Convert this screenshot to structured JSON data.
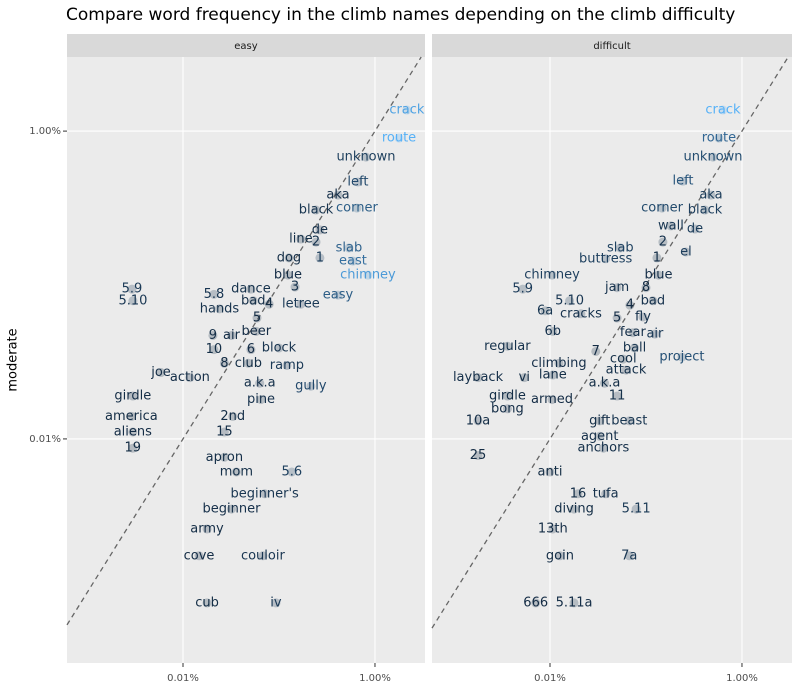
{
  "title": "Compare word frequency in the climb names depending on the climb difficulty",
  "y_label": "moderate",
  "chart_data": [
    {
      "type": "scatter",
      "facet": "easy",
      "log_x": true,
      "log_y": true,
      "grid": true,
      "color_scale": {
        "low": "#132B43",
        "high": "#56B1F7"
      },
      "xlim": [
        6.19e-06,
        0.0332
      ],
      "ylim": [
        3.5e-06,
        0.0303
      ],
      "xticks": [
        {
          "value": 0.0001,
          "label": "0.01%"
        },
        {
          "value": 0.01,
          "label": "1.00%"
        }
      ],
      "yticks": [
        {
          "value": 0.0001,
          "label": "0.01%"
        },
        {
          "value": 0.01,
          "label": "1.00%"
        }
      ],
      "labels": [
        "crack",
        "route",
        "unknown",
        "left",
        "aka",
        "black",
        "corner",
        "de",
        "line",
        "2",
        "slab",
        "1",
        "dog",
        "east",
        "blue",
        "chimney",
        "3",
        "5.9",
        "dance",
        "easy",
        "5.10",
        "5.8",
        "bad",
        "4",
        "letree",
        "hands",
        "5",
        "beer",
        "9",
        "air",
        "10",
        "6",
        "block",
        "8",
        "club",
        "ramp",
        "joe",
        "action",
        "a.k.a",
        "gully",
        "girdle",
        "pine",
        "america",
        "2nd",
        "aliens",
        "15",
        "19",
        "apron",
        "mom",
        "5.6",
        "beginner's",
        "beginner",
        "army",
        "cove",
        "couloir",
        "cub",
        "iv"
      ],
      "x": [
        0.0215,
        0.0178,
        0.00806,
        0.00665,
        0.00412,
        0.00243,
        0.00649,
        0.00267,
        0.00169,
        0.00243,
        0.00536,
        0.00267,
        0.00127,
        0.0059,
        0.00124,
        0.00845,
        0.00147,
        2.94e-05,
        0.00051,
        0.00412,
        3.01e-05,
        0.00021,
        0.00054,
        0.00079,
        0.00169,
        0.00024,
        0.00059,
        0.00058,
        0.000205,
        0.00032,
        0.00021,
        0.00051,
        0.001,
        0.00027,
        0.00048,
        0.00121,
        5.9e-05,
        0.000118,
        0.00063,
        0.00215,
        3e-05,
        0.00065,
        2.9e-05,
        0.00033,
        3e-05,
        0.00027,
        3e-05,
        0.00027,
        0.00036,
        0.00136,
        0.00071,
        0.00032,
        0.000178,
        0.000147,
        0.00068,
        0.000178,
        0.00093
      ],
      "y": [
        0.0137,
        0.00901,
        0.00678,
        0.00467,
        0.00384,
        0.00307,
        0.00316,
        0.00228,
        0.00199,
        0.0019,
        0.00174,
        0.0015,
        0.0015,
        0.00143,
        0.00116,
        0.00116,
        0.00097,
        0.00094,
        0.00094,
        0.00086,
        0.00079,
        0.00087,
        0.00079,
        0.00075,
        0.00075,
        0.0007,
        0.00061,
        0.0005,
        0.00047,
        0.00047,
        0.00038,
        0.00038,
        0.00039,
        0.00031,
        0.00031,
        0.0003,
        0.00027,
        0.00025,
        0.00023,
        0.00022,
        0.00019,
        0.00018,
        0.00014,
        0.00014,
        0.000111,
        0.000111,
        8.7e-05,
        7.6e-05,
        6.1e-05,
        6.1e-05,
        4.4e-05,
        3.5e-05,
        2.6e-05,
        1.74e-05,
        1.74e-05,
        8.6e-06,
        8.6e-06
      ]
    },
    {
      "type": "scatter",
      "facet": "difficult",
      "log_x": true,
      "log_y": true,
      "grid": true,
      "color_scale": {
        "low": "#132B43",
        "high": "#56B1F7"
      },
      "xlim": [
        5.9e-06,
        0.0332
      ],
      "ylim": [
        3.5e-06,
        0.0303
      ],
      "xticks": [
        {
          "value": 0.0001,
          "label": "0.01%"
        },
        {
          "value": 0.01,
          "label": "1.00%"
        }
      ],
      "yticks": [
        0.0001,
        0.01
      ],
      "labels": [
        "crack",
        "route",
        "unknown",
        "left",
        "aka",
        "corner",
        "black",
        "wall",
        "de",
        "2",
        "el",
        "slab",
        "1",
        "buttress",
        "blue",
        "chimney",
        "5.9",
        "jam",
        "8",
        "bad",
        "5.10",
        "4",
        "6a",
        "cracks",
        "5",
        "fly",
        "6b",
        "fear",
        "air",
        "regular",
        "7",
        "ball",
        "project",
        "cool",
        "climbing",
        "attack",
        "layback",
        "vi",
        "lane",
        "a.k.a",
        "11",
        "girdle",
        "armed",
        "bong",
        "gift",
        "beast",
        "10a",
        "agent",
        "anchors",
        "25",
        "anti",
        "tufa",
        "16",
        "diving",
        "5.11",
        "13th",
        "goin",
        "7a",
        "666",
        "5.11a"
      ],
      "x": [
        0.00634,
        0.00575,
        0.00499,
        0.00243,
        0.00475,
        0.00147,
        0.00412,
        0.00182,
        0.00324,
        0.0015,
        0.00261,
        0.00054,
        0.0013,
        0.00038,
        0.00135,
        0.000105,
        5.2e-05,
        0.0005,
        0.001,
        0.00118,
        0.00016,
        0.00068,
        8.9e-05,
        0.00021,
        0.0005,
        0.00093,
        0.000107,
        0.00073,
        0.00124,
        3.6e-05,
        0.0003,
        0.00076,
        0.00237,
        0.00058,
        0.000124,
        0.00062,
        1.78e-05,
        5.4e-05,
        0.000107,
        0.00037,
        0.0005,
        3.6e-05,
        0.000105,
        3.6e-05,
        0.00033,
        0.00067,
        1.78e-05,
        0.00033,
        0.00036,
        1.78e-05,
        0.0001,
        0.00038,
        0.000196,
        0.000178,
        0.00079,
        0.000107,
        0.000127,
        0.00067,
        7.1e-05,
        0.000178
      ],
      "y": [
        0.0137,
        0.00901,
        0.00678,
        0.00473,
        0.00384,
        0.00316,
        0.00307,
        0.00242,
        0.00231,
        0.0019,
        0.00164,
        0.00174,
        0.0015,
        0.00148,
        0.00116,
        0.00116,
        0.00094,
        0.00096,
        0.00096,
        0.00079,
        0.00079,
        0.00074,
        0.00068,
        0.00065,
        0.00061,
        0.00062,
        0.0005,
        0.00049,
        0.00048,
        0.0004,
        0.00037,
        0.00039,
        0.00034,
        0.00033,
        0.00031,
        0.00028,
        0.00025,
        0.00025,
        0.00026,
        0.00023,
        0.00019,
        0.00019,
        0.00018,
        0.000157,
        0.000131,
        0.000131,
        0.000131,
        0.000104,
        8.7e-05,
        7.8e-05,
        6.1e-05,
        4.4e-05,
        4.4e-05,
        3.5e-05,
        3.5e-05,
        2.6e-05,
        1.74e-05,
        1.74e-05,
        8.6e-06,
        8.6e-06
      ]
    }
  ]
}
